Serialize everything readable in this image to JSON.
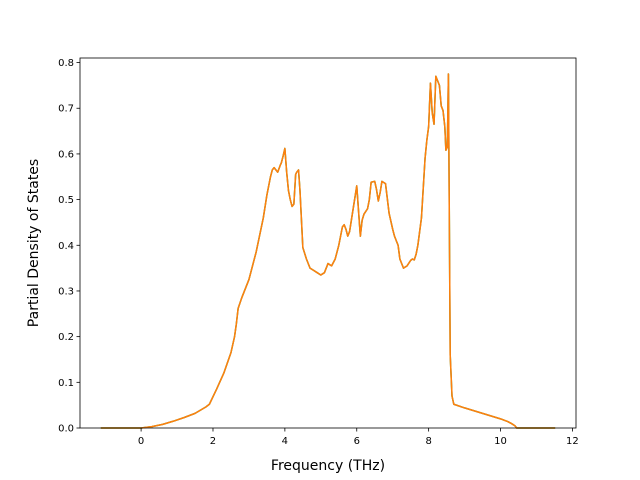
{
  "chart_data": {
    "type": "line",
    "title": "",
    "xlabel": "Frequency (THz)",
    "ylabel": "Partial Density of States",
    "xlim": [
      -1.7,
      12.1
    ],
    "ylim": [
      0.0,
      0.81
    ],
    "xticks": [
      0,
      2,
      4,
      6,
      8,
      10,
      12
    ],
    "yticks": [
      0.0,
      0.1,
      0.2,
      0.3,
      0.4,
      0.5,
      0.6,
      0.7,
      0.8
    ],
    "grid": false,
    "legend": "none",
    "series": [
      {
        "color": "#2ca02c",
        "x": [
          -1.1,
          -0.6,
          0.0,
          0.3,
          0.6,
          0.9,
          1.2,
          1.5,
          1.8,
          1.9,
          2.1,
          2.3,
          2.5,
          2.6,
          2.65,
          2.7,
          2.8,
          3.0,
          3.2,
          3.4,
          3.5,
          3.6,
          3.65,
          3.7,
          3.8,
          3.87,
          3.9,
          3.95,
          4.0,
          4.05,
          4.1,
          4.15,
          4.2,
          4.25,
          4.3,
          4.33,
          4.38,
          4.42,
          4.5,
          4.6,
          4.7,
          4.8,
          4.9,
          5.0,
          5.1,
          5.2,
          5.3,
          5.4,
          5.5,
          5.6,
          5.65,
          5.7,
          5.75,
          5.8,
          5.9,
          6.0,
          6.1,
          6.15,
          6.2,
          6.3,
          6.35,
          6.4,
          6.5,
          6.55,
          6.6,
          6.65,
          6.7,
          6.8,
          6.9,
          7.0,
          7.05,
          7.1,
          7.15,
          7.2,
          7.3,
          7.4,
          7.5,
          7.55,
          7.6,
          7.65,
          7.7,
          7.8,
          7.9,
          7.95,
          8.0,
          8.05,
          8.1,
          8.15,
          8.2,
          8.3,
          8.35,
          8.4,
          8.45,
          8.48,
          8.52,
          8.55,
          8.6,
          8.65,
          8.7,
          9.0,
          9.5,
          10.0,
          10.2,
          10.3,
          10.4,
          10.45,
          10.6,
          11.5
        ],
        "values": [
          0.0,
          0.0,
          0.0,
          0.003,
          0.008,
          0.015,
          0.023,
          0.032,
          0.046,
          0.052,
          0.085,
          0.12,
          0.165,
          0.2,
          0.228,
          0.262,
          0.285,
          0.325,
          0.385,
          0.46,
          0.51,
          0.55,
          0.565,
          0.57,
          0.56,
          0.575,
          0.58,
          0.595,
          0.612,
          0.56,
          0.52,
          0.5,
          0.485,
          0.49,
          0.555,
          0.56,
          0.565,
          0.52,
          0.395,
          0.37,
          0.35,
          0.345,
          0.34,
          0.335,
          0.34,
          0.36,
          0.355,
          0.37,
          0.4,
          0.44,
          0.445,
          0.435,
          0.42,
          0.43,
          0.48,
          0.53,
          0.42,
          0.455,
          0.468,
          0.48,
          0.5,
          0.538,
          0.54,
          0.522,
          0.497,
          0.515,
          0.54,
          0.535,
          0.47,
          0.435,
          0.42,
          0.41,
          0.4,
          0.37,
          0.35,
          0.355,
          0.367,
          0.37,
          0.368,
          0.38,
          0.4,
          0.46,
          0.59,
          0.63,
          0.66,
          0.755,
          0.69,
          0.665,
          0.77,
          0.75,
          0.705,
          0.695,
          0.66,
          0.608,
          0.615,
          0.775,
          0.16,
          0.07,
          0.052,
          0.044,
          0.032,
          0.02,
          0.014,
          0.01,
          0.005,
          0.0,
          0.0,
          0.0
        ]
      },
      {
        "color": "#ff7f0e",
        "x": [
          -1.1,
          -0.6,
          0.0,
          0.3,
          0.6,
          0.9,
          1.2,
          1.5,
          1.8,
          1.9,
          2.1,
          2.3,
          2.5,
          2.6,
          2.65,
          2.7,
          2.8,
          3.0,
          3.2,
          3.4,
          3.5,
          3.6,
          3.65,
          3.7,
          3.8,
          3.87,
          3.9,
          3.95,
          4.0,
          4.05,
          4.1,
          4.15,
          4.2,
          4.25,
          4.3,
          4.33,
          4.38,
          4.42,
          4.5,
          4.6,
          4.7,
          4.8,
          4.9,
          5.0,
          5.1,
          5.2,
          5.3,
          5.4,
          5.5,
          5.6,
          5.65,
          5.7,
          5.75,
          5.8,
          5.9,
          6.0,
          6.1,
          6.15,
          6.2,
          6.3,
          6.35,
          6.4,
          6.5,
          6.55,
          6.6,
          6.65,
          6.7,
          6.8,
          6.9,
          7.0,
          7.05,
          7.1,
          7.15,
          7.2,
          7.3,
          7.4,
          7.5,
          7.55,
          7.6,
          7.65,
          7.7,
          7.8,
          7.9,
          7.95,
          8.0,
          8.05,
          8.1,
          8.15,
          8.2,
          8.3,
          8.35,
          8.4,
          8.45,
          8.48,
          8.52,
          8.55,
          8.6,
          8.65,
          8.7,
          9.0,
          9.5,
          10.0,
          10.2,
          10.3,
          10.4,
          10.45,
          10.6,
          11.5
        ],
        "values": [
          0.0,
          0.0,
          0.0,
          0.003,
          0.008,
          0.015,
          0.023,
          0.032,
          0.046,
          0.052,
          0.085,
          0.12,
          0.165,
          0.2,
          0.228,
          0.262,
          0.285,
          0.325,
          0.385,
          0.46,
          0.51,
          0.55,
          0.565,
          0.57,
          0.56,
          0.575,
          0.58,
          0.595,
          0.612,
          0.56,
          0.52,
          0.5,
          0.485,
          0.49,
          0.555,
          0.56,
          0.565,
          0.52,
          0.395,
          0.37,
          0.35,
          0.345,
          0.34,
          0.335,
          0.34,
          0.36,
          0.355,
          0.37,
          0.4,
          0.44,
          0.445,
          0.435,
          0.42,
          0.43,
          0.48,
          0.53,
          0.42,
          0.455,
          0.468,
          0.48,
          0.5,
          0.538,
          0.54,
          0.522,
          0.497,
          0.515,
          0.54,
          0.535,
          0.47,
          0.435,
          0.42,
          0.41,
          0.4,
          0.37,
          0.35,
          0.355,
          0.367,
          0.37,
          0.368,
          0.38,
          0.4,
          0.46,
          0.59,
          0.63,
          0.66,
          0.755,
          0.69,
          0.665,
          0.77,
          0.75,
          0.705,
          0.695,
          0.66,
          0.608,
          0.615,
          0.775,
          0.16,
          0.07,
          0.052,
          0.044,
          0.032,
          0.02,
          0.014,
          0.01,
          0.005,
          0.0,
          0.0,
          0.0
        ]
      }
    ]
  }
}
